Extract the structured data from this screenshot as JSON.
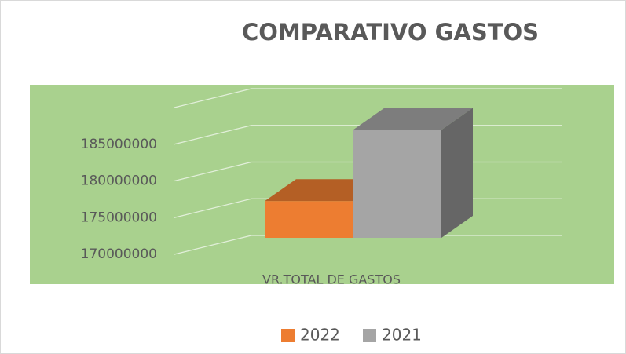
{
  "chart_data": {
    "type": "bar3d",
    "title": "COMPARATIVO GASTOS",
    "categories": [
      "VR.TOTAL DE GASTOS"
    ],
    "series": [
      {
        "name": "2022",
        "color": "#ed7d31",
        "values": [
          175000000
        ]
      },
      {
        "name": "2021",
        "color": "#a5a5a5",
        "values": [
          184700000
        ]
      }
    ],
    "ylim": [
      170000000,
      190000000
    ],
    "yticks": [
      170000000,
      175000000,
      180000000,
      185000000
    ],
    "grid": true,
    "legend": "bottom",
    "plot_background": "#a9d18e"
  }
}
